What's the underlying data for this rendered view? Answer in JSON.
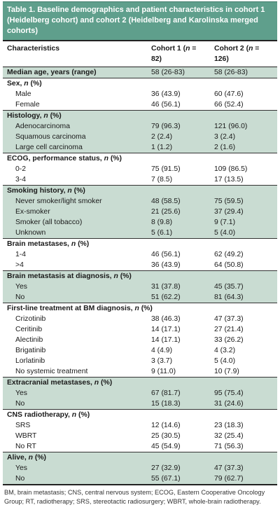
{
  "table": {
    "title": "Table 1. Baseline demographics and patient characteristics in cohort 1 (Heidelberg cohort) and cohort 2 (Heidelberg and Karolinska merged cohorts)",
    "columns": [
      "Characteristics",
      "Cohort 1 (n = 82)",
      "Cohort 2 (n = 126)"
    ],
    "sections": [
      {
        "header": "Median age, years (range)",
        "header_values": [
          "58 (26-83)",
          "58 (26-83)"
        ],
        "shaded": true,
        "rows": []
      },
      {
        "header": "Sex, n (%)",
        "shaded": false,
        "rows": [
          {
            "label": "Male",
            "c1": "36 (43.9)",
            "c2": "60 (47.6)"
          },
          {
            "label": "Female",
            "c1": "46 (56.1)",
            "c2": "66 (52.4)"
          }
        ]
      },
      {
        "header": "Histology, n (%)",
        "shaded": true,
        "rows": [
          {
            "label": "Adenocarcinoma",
            "c1": "79 (96.3)",
            "c2": "121 (96.0)"
          },
          {
            "label": "Squamous carcinoma",
            "c1": "2 (2.4)",
            "c2": "3 (2.4)"
          },
          {
            "label": "Large cell carcinoma",
            "c1": "1 (1.2)",
            "c2": "2 (1.6)"
          }
        ]
      },
      {
        "header": "ECOG, performance status, n (%)",
        "shaded": false,
        "rows": [
          {
            "label": "0-2",
            "c1": "75 (91.5)",
            "c2": "109 (86.5)"
          },
          {
            "label": "3-4",
            "c1": "7 (8.5)",
            "c2": "17 (13.5)"
          }
        ]
      },
      {
        "header": "Smoking history, n (%)",
        "shaded": true,
        "rows": [
          {
            "label": "Never smoker/light smoker",
            "c1": "48 (58.5)",
            "c2": "75 (59.5)"
          },
          {
            "label": "Ex-smoker",
            "c1": "21 (25.6)",
            "c2": "37 (29.4)"
          },
          {
            "label": "Smoker (all tobacco)",
            "c1": "8 (9.8)",
            "c2": "9 (7.1)"
          },
          {
            "label": "Unknown",
            "c1": "5 (6.1)",
            "c2": "5 (4.0)"
          }
        ]
      },
      {
        "header": "Brain metastases, n (%)",
        "shaded": false,
        "rows": [
          {
            "label": "1-4",
            "c1": "46 (56.1)",
            "c2": "62 (49.2)"
          },
          {
            "label": ">4",
            "c1": "36 (43.9)",
            "c2": "64 (50.8)"
          }
        ]
      },
      {
        "header": "Brain metastasis at diagnosis, n (%)",
        "shaded": true,
        "rows": [
          {
            "label": "Yes",
            "c1": "31 (37.8)",
            "c2": "45 (35.7)"
          },
          {
            "label": "No",
            "c1": "51 (62.2)",
            "c2": "81 (64.3)"
          }
        ]
      },
      {
        "header": "First-line treatment at BM diagnosis, n (%)",
        "shaded": false,
        "rows": [
          {
            "label": "Crizotinib",
            "c1": "38 (46.3)",
            "c2": "47 (37.3)"
          },
          {
            "label": "Ceritinib",
            "c1": "14 (17.1)",
            "c2": "27 (21.4)"
          },
          {
            "label": "Alectinib",
            "c1": "14 (17.1)",
            "c2": "33 (26.2)"
          },
          {
            "label": "Brigatinib",
            "c1": "4 (4.9)",
            "c2": "4 (3.2)"
          },
          {
            "label": "Lorlatinib",
            "c1": "3 (3.7)",
            "c2": "5 (4.0)"
          },
          {
            "label": "No systemic treatment",
            "c1": "9 (11.0)",
            "c2": "10 (7.9)"
          }
        ]
      },
      {
        "header": "Extracranial metastases, n (%)",
        "shaded": true,
        "rows": [
          {
            "label": "Yes",
            "c1": "67 (81.7)",
            "c2": "95 (75.4)"
          },
          {
            "label": "No",
            "c1": "15 (18.3)",
            "c2": "31 (24.6)"
          }
        ]
      },
      {
        "header": "CNS radiotherapy, n (%)",
        "shaded": false,
        "rows": [
          {
            "label": "SRS",
            "c1": "12 (14.6)",
            "c2": "23 (18.3)"
          },
          {
            "label": "WBRT",
            "c1": "25 (30.5)",
            "c2": "32 (25.4)"
          },
          {
            "label": "No RT",
            "c1": "45 (54.9)",
            "c2": "71 (56.3)"
          }
        ]
      },
      {
        "header": "Alive, n (%)",
        "shaded": true,
        "rows": [
          {
            "label": "Yes",
            "c1": "27 (32.9)",
            "c2": "47 (37.3)"
          },
          {
            "label": "No",
            "c1": "55 (67.1)",
            "c2": "79 (62.7)"
          }
        ]
      }
    ],
    "footnote": "BM, brain metastasis; CNS, central nervous system; ECOG, Eastern Cooperative Oncology Group; RT, radiotherapy; SRS, stereotactic radiosurgery; WBRT, whole-brain radiotherapy."
  },
  "colors": {
    "title_bg": "#5f9f8c",
    "shade": "#c9dcd2"
  }
}
